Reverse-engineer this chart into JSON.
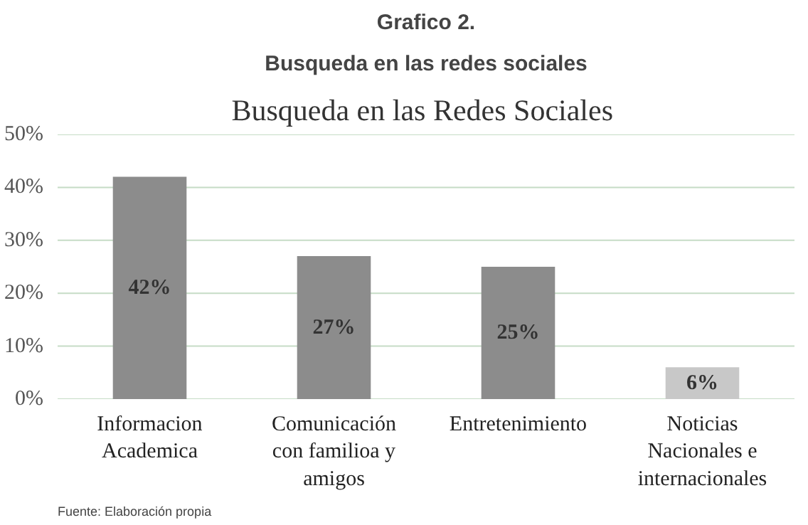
{
  "chart_data": {
    "type": "bar",
    "title": "Grafico 2.",
    "subtitle": "Busqueda en las redes sociales",
    "annotations": [
      "Busqueda  en las Redes Sociales",
      "Fuente: Elaboración propia"
    ],
    "categories": [
      "Informacion\nAcademica",
      "Comunicación\ncon familioa y\namigos",
      "Entretenimiento",
      "Noticias\nNacionales e\ninternacionales"
    ],
    "values": [
      42,
      27,
      25,
      6
    ],
    "colors": [
      "#8c8c8c",
      "#8c8c8c",
      "#8c8c8c",
      "#c8c8c8"
    ],
    "value_labels": [
      "42%",
      "27%",
      "25%",
      "6%"
    ],
    "ylim": [
      0,
      50
    ],
    "yticks": [
      {
        "value": 0,
        "label": "0%"
      },
      {
        "value": 10,
        "label": "10%"
      },
      {
        "value": 20,
        "label": "20%"
      },
      {
        "value": 30,
        "label": "30%"
      },
      {
        "value": 40,
        "label": "40%"
      },
      {
        "value": 50,
        "label": "50%"
      }
    ],
    "grid": "y"
  }
}
